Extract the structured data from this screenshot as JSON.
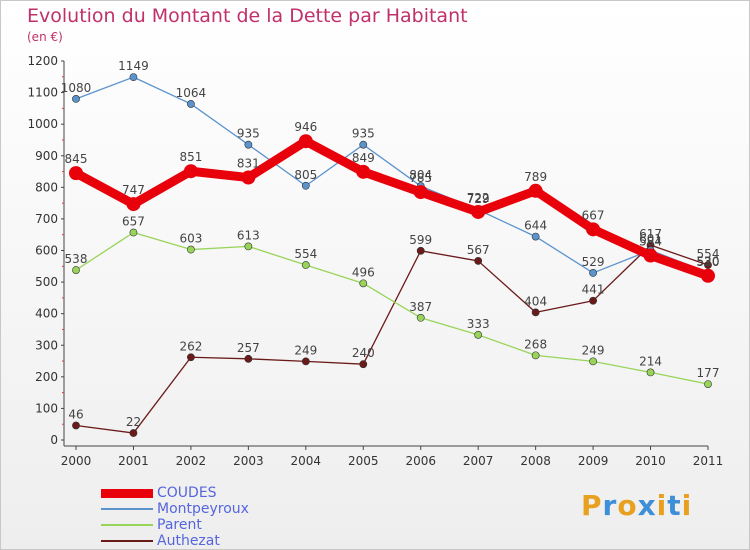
{
  "title": "Evolution du Montant de la Dette par Habitant",
  "subtitle": "(en €)",
  "logo": {
    "text": "Proxiti",
    "letters": [
      {
        "ch": "P",
        "color": "#e8a020"
      },
      {
        "ch": "r",
        "color": "#3d8fd8"
      },
      {
        "ch": "o",
        "color": "#e8a020"
      },
      {
        "ch": "x",
        "color": "#3d8fd8"
      },
      {
        "ch": "i",
        "color": "#e8a020"
      },
      {
        "ch": "t",
        "color": "#3d8fd8"
      },
      {
        "ch": "i",
        "color": "#e8a020"
      }
    ]
  },
  "chart_data": {
    "type": "line",
    "x": [
      "2000",
      "2001",
      "2002",
      "2003",
      "2004",
      "2005",
      "2006",
      "2007",
      "2008",
      "2009",
      "2010",
      "2011"
    ],
    "ylim": [
      0,
      1200
    ],
    "yticks": [
      0,
      100,
      200,
      300,
      400,
      500,
      600,
      700,
      800,
      900,
      1000,
      1100,
      1200
    ],
    "grid": false,
    "legend_position": "bottom-left",
    "series": [
      {
        "name": "COUDES",
        "color": "#e8000a",
        "values": [
          845,
          747,
          851,
          831,
          946,
          849,
          785,
          722,
          789,
          667,
          584,
          520
        ]
      },
      {
        "name": "Montpeyroux",
        "color": "#5b93cc",
        "values": [
          1080,
          1149,
          1064,
          935,
          805,
          935,
          804,
          729,
          644,
          529,
          601,
          530
        ]
      },
      {
        "name": "Parent",
        "color": "#99d45a",
        "values": [
          538,
          657,
          603,
          613,
          554,
          496,
          387,
          333,
          268,
          249,
          214,
          177
        ]
      },
      {
        "name": "Authezat",
        "color": "#6b1a1a",
        "values": [
          46,
          22,
          262,
          257,
          249,
          240,
          599,
          567,
          404,
          441,
          617,
          554
        ]
      }
    ]
  }
}
